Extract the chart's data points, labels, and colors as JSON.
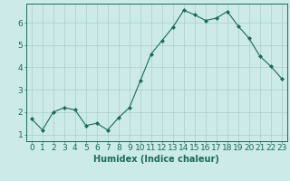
{
  "x": [
    0,
    1,
    2,
    3,
    4,
    5,
    6,
    7,
    8,
    9,
    10,
    11,
    12,
    13,
    14,
    15,
    16,
    17,
    18,
    19,
    20,
    21,
    22,
    23
  ],
  "y": [
    1.7,
    1.2,
    2.0,
    2.2,
    2.1,
    1.4,
    1.5,
    1.2,
    1.75,
    2.2,
    3.4,
    4.6,
    5.2,
    5.8,
    6.55,
    6.35,
    6.1,
    6.2,
    6.5,
    5.85,
    5.3,
    4.5,
    4.05,
    3.5
  ],
  "line_color": "#1a6b5a",
  "marker": "D",
  "marker_size": 2,
  "bg_color": "#cceae7",
  "grid_color": "#aacfcc",
  "xlabel": "Humidex (Indice chaleur)",
  "xlim": [
    -0.5,
    23.5
  ],
  "ylim": [
    0.7,
    6.85
  ],
  "yticks": [
    1,
    2,
    3,
    4,
    5,
    6
  ],
  "xticks": [
    0,
    1,
    2,
    3,
    4,
    5,
    6,
    7,
    8,
    9,
    10,
    11,
    12,
    13,
    14,
    15,
    16,
    17,
    18,
    19,
    20,
    21,
    22,
    23
  ],
  "xlabel_fontsize": 7,
  "tick_fontsize": 6.5
}
